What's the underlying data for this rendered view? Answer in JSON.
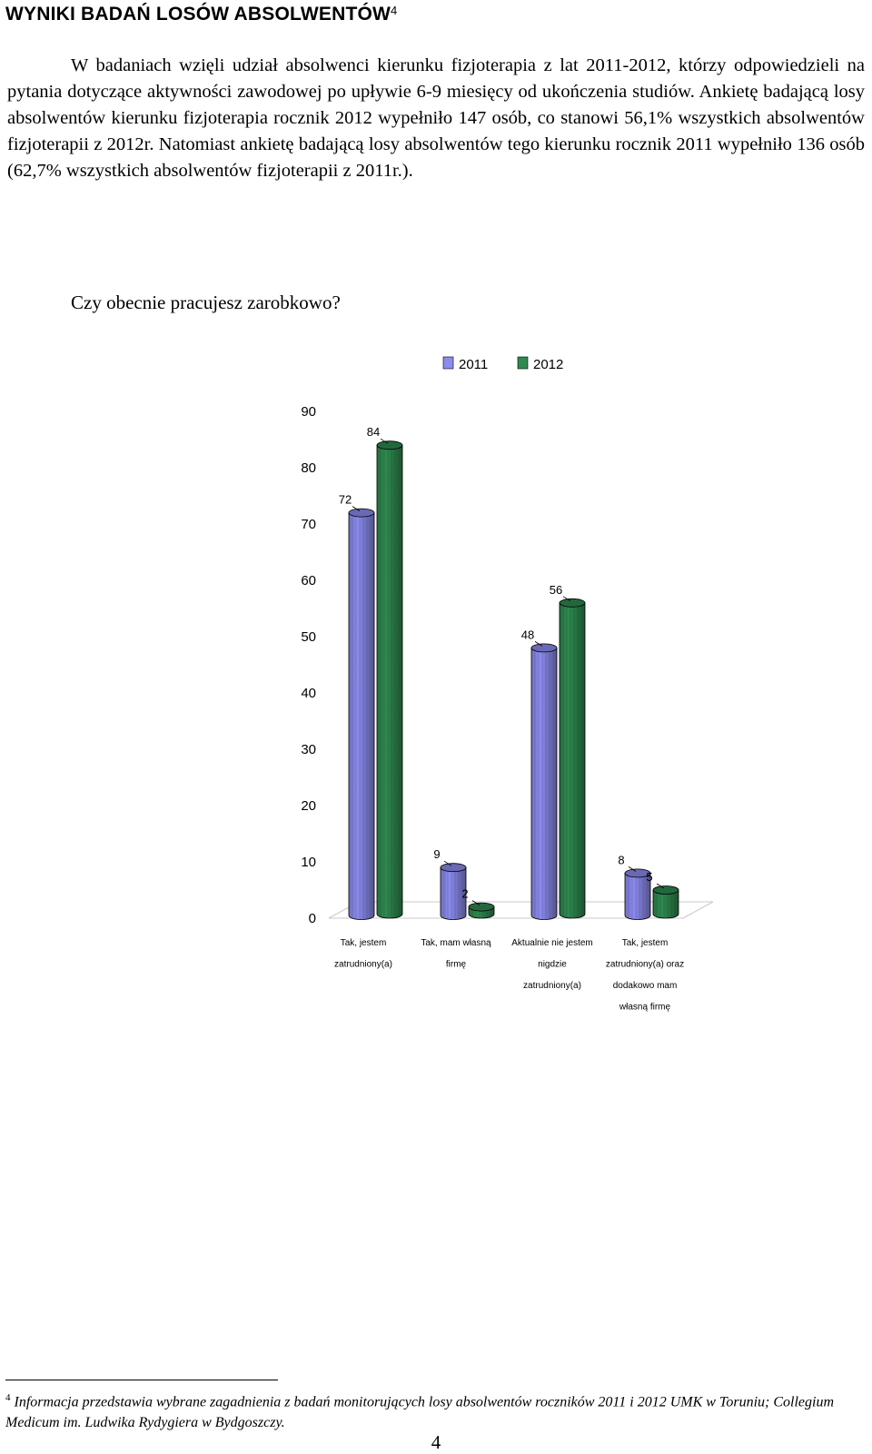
{
  "heading": {
    "text": "WYNIKI BADAŃ LOSÓW ABSOLWENTÓW",
    "footnote_ref": "4"
  },
  "intro": "W badaniach wzięli udział absolwenci kierunku fizjoterapia z lat 2011-2012, którzy odpowiedzieli na pytania dotyczące aktywności zawodowej po upływie 6-9 miesięcy od ukończenia studiów. Ankietę badającą losy absolwentów kierunku fizjoterapia rocznik 2012 wypełniło 147 osób, co stanowi 56,1% wszystkich absolwentów fizjoterapii z 2012r. Natomiast ankietę badającą losy absolwentów tego kierunku rocznik 2011 wypełniło 136 osób (62,7% wszystkich absolwentów fizjoterapii z 2011r.).",
  "question": "Czy obecnie pracujesz zarobkowo?",
  "chart_data": {
    "type": "bar",
    "title": "",
    "xlabel": "",
    "ylabel": "",
    "ylim": [
      0,
      90
    ],
    "yticks": [
      0,
      10,
      20,
      30,
      40,
      50,
      60,
      70,
      80,
      90
    ],
    "legend_position": "top",
    "categories": [
      [
        "Tak, jestem",
        "zatrudniony(a)"
      ],
      [
        "Tak, mam własną",
        "firmę"
      ],
      [
        "Aktualnie nie jestem",
        "nigdzie",
        "zatrudniony(a)"
      ],
      [
        "Tak, jestem",
        "zatrudniony(a) oraz",
        "dodakowo mam",
        "własną firmę"
      ]
    ],
    "series": [
      {
        "name": "2011",
        "values": [
          72,
          9,
          48,
          8
        ],
        "color": "#8c8cf0"
      },
      {
        "name": "2012",
        "values": [
          84,
          2,
          56,
          5
        ],
        "color": "#2f8a50"
      }
    ]
  },
  "footnote": {
    "marker": "4",
    "text": "Informacja przedstawia wybrane zagadnienia z badań monitorujących losy absolwentów roczników 2011 i 2012 UMK w Toruniu; Collegium Medicum im. Ludwika Rydygiera w Bydgoszczy."
  },
  "page_number": "4"
}
